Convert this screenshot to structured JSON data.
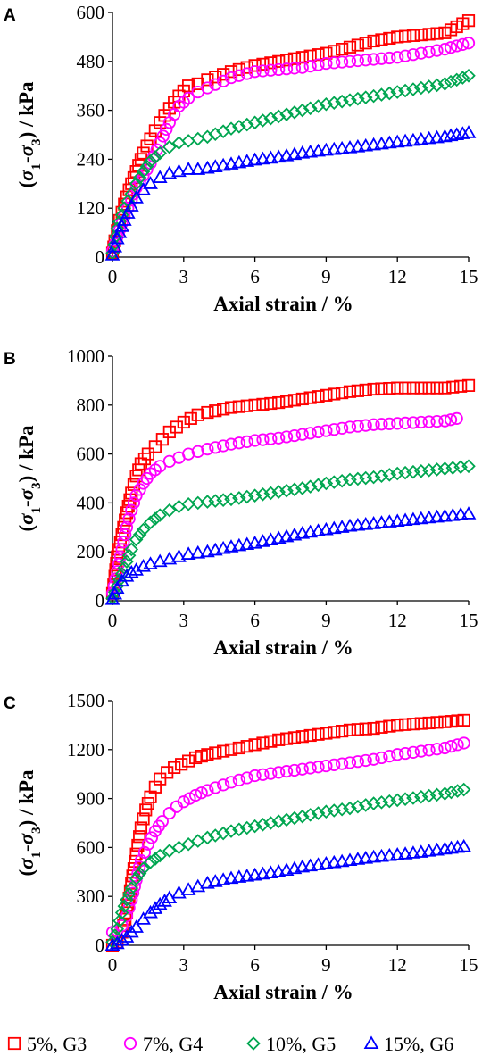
{
  "chart_data": [
    {
      "type": "scatter",
      "panel_label": "A",
      "xlabel": "Axial strain / %",
      "ylabel": "(σ1-σ3) / kPa",
      "xlim": [
        0,
        15
      ],
      "ylim": [
        0,
        600
      ],
      "xticks": [
        0,
        3,
        6,
        9,
        12,
        15
      ],
      "yticks": [
        0,
        120,
        240,
        360,
        480,
        600
      ],
      "series": [
        {
          "name": "5%, G3",
          "x": [
            0,
            0.1,
            0.2,
            0.3,
            0.5,
            0.7,
            1.0,
            1.3,
            1.6,
            2.0,
            2.4,
            2.8,
            3.2,
            3.6,
            4.0,
            5.0,
            6.0,
            7.0,
            8.0,
            9.0,
            10.0,
            11.0,
            12.0,
            13.0,
            14.0,
            14.5,
            15.0
          ],
          "y": [
            10,
            40,
            65,
            90,
            130,
            165,
            210,
            255,
            290,
            330,
            365,
            395,
            420,
            425,
            435,
            455,
            470,
            480,
            490,
            500,
            515,
            530,
            540,
            545,
            550,
            565,
            580
          ]
        },
        {
          "name": "7%, G4",
          "x": [
            0,
            0.2,
            0.5,
            0.8,
            1.0,
            1.3,
            1.6,
            2.0,
            2.4,
            2.8,
            3.2,
            3.6,
            4.0,
            5.0,
            6.0,
            7.0,
            8.0,
            9.0,
            10.0,
            11.0,
            12.0,
            13.0,
            14.0,
            14.5,
            15.0
          ],
          "y": [
            15,
            50,
            100,
            140,
            170,
            200,
            230,
            280,
            330,
            370,
            390,
            405,
            415,
            440,
            455,
            460,
            465,
            475,
            480,
            485,
            490,
            500,
            510,
            518,
            525
          ]
        },
        {
          "name": "10%, G5",
          "x": [
            0,
            0.2,
            0.5,
            0.8,
            1.0,
            1.3,
            1.6,
            2.0,
            2.4,
            2.8,
            3.2,
            3.6,
            4.0,
            5.0,
            6.0,
            7.0,
            8.0,
            9.0,
            10.0,
            11.0,
            12.0,
            13.0,
            14.0,
            14.5,
            15.0
          ],
          "y": [
            10,
            70,
            120,
            155,
            180,
            210,
            235,
            255,
            270,
            280,
            285,
            290,
            295,
            315,
            330,
            345,
            360,
            375,
            385,
            395,
            405,
            415,
            425,
            435,
            445
          ]
        },
        {
          "name": "15%, G6",
          "x": [
            0,
            0.2,
            0.5,
            0.8,
            1.0,
            1.3,
            1.6,
            2.0,
            2.4,
            2.8,
            3.2,
            3.6,
            4.0,
            5.0,
            6.0,
            7.0,
            8.0,
            9.0,
            10.0,
            11.0,
            12.0,
            13.0,
            14.0,
            14.5,
            15.0
          ],
          "y": [
            5,
            45,
            90,
            125,
            145,
            165,
            180,
            195,
            205,
            210,
            215,
            215,
            218,
            228,
            238,
            245,
            255,
            262,
            268,
            275,
            282,
            288,
            295,
            300,
            305
          ]
        }
      ]
    },
    {
      "type": "scatter",
      "panel_label": "B",
      "xlabel": "Axial strain / %",
      "ylabel": "(σ1-σ3) / kPa",
      "xlim": [
        0,
        15
      ],
      "ylim": [
        0,
        1000
      ],
      "xticks": [
        0,
        3,
        6,
        9,
        12,
        15
      ],
      "yticks": [
        0,
        200,
        400,
        600,
        800,
        1000
      ],
      "series": [
        {
          "name": "5%, G3",
          "x": [
            0,
            0.1,
            0.2,
            0.4,
            0.6,
            0.8,
            1.0,
            1.2,
            1.5,
            1.8,
            2.1,
            2.4,
            2.7,
            3.0,
            3.3,
            3.6,
            4.0,
            5.0,
            6.0,
            7.0,
            8.0,
            9.0,
            10.0,
            11.0,
            12.0,
            13.0,
            14.0,
            15.0
          ],
          "y": [
            30,
            100,
            180,
            270,
            360,
            440,
            510,
            560,
            600,
            630,
            660,
            690,
            710,
            730,
            745,
            760,
            770,
            790,
            800,
            810,
            825,
            840,
            855,
            865,
            870,
            870,
            870,
            880
          ]
        },
        {
          "name": "7%, G4",
          "x": [
            0,
            0.2,
            0.4,
            0.6,
            0.8,
            1.0,
            1.3,
            1.6,
            2.0,
            2.4,
            2.8,
            3.2,
            3.6,
            4.0,
            5.0,
            6.0,
            7.0,
            8.0,
            9.0,
            10.0,
            11.0,
            12.0,
            13.0,
            14.0,
            14.5
          ],
          "y": [
            30,
            120,
            210,
            300,
            370,
            430,
            480,
            520,
            550,
            570,
            585,
            600,
            610,
            620,
            640,
            655,
            665,
            680,
            695,
            710,
            720,
            725,
            730,
            735,
            745
          ]
        },
        {
          "name": "10%, G5",
          "x": [
            0,
            0.2,
            0.4,
            0.6,
            0.8,
            1.0,
            1.3,
            1.6,
            2.0,
            2.4,
            2.8,
            3.2,
            3.6,
            4.0,
            5.0,
            6.0,
            7.0,
            8.0,
            9.0,
            10.0,
            11.0,
            12.0,
            13.0,
            14.0,
            15.0
          ],
          "y": [
            10,
            60,
            110,
            160,
            210,
            250,
            290,
            320,
            350,
            370,
            385,
            395,
            400,
            405,
            415,
            430,
            445,
            460,
            480,
            495,
            505,
            520,
            530,
            540,
            550
          ]
        },
        {
          "name": "15%, G6",
          "x": [
            0,
            0.2,
            0.4,
            0.6,
            0.8,
            1.0,
            1.3,
            1.6,
            2.0,
            2.4,
            2.8,
            3.2,
            3.6,
            4.0,
            5.0,
            6.0,
            7.0,
            8.0,
            9.0,
            10.0,
            11.0,
            12.0,
            13.0,
            14.0,
            15.0
          ],
          "y": [
            5,
            50,
            80,
            100,
            115,
            125,
            140,
            150,
            160,
            170,
            180,
            190,
            195,
            200,
            220,
            235,
            255,
            275,
            290,
            305,
            315,
            325,
            335,
            345,
            355
          ]
        }
      ]
    },
    {
      "type": "scatter",
      "panel_label": "C",
      "xlabel": "Axial strain / %",
      "ylabel": "(σ1-σ3) / kPa",
      "xlim": [
        0,
        15
      ],
      "ylim": [
        0,
        1500
      ],
      "xticks": [
        0,
        3,
        6,
        9,
        12,
        15
      ],
      "yticks": [
        0,
        300,
        600,
        900,
        1200,
        1500
      ],
      "series": [
        {
          "name": "5%, G3",
          "x": [
            0,
            0.2,
            0.4,
            0.6,
            0.8,
            1.0,
            1.2,
            1.4,
            1.6,
            1.8,
            2.0,
            2.3,
            2.6,
            2.9,
            3.2,
            3.5,
            4.0,
            5.0,
            6.0,
            7.0,
            8.0,
            9.0,
            10.0,
            11.0,
            12.0,
            13.0,
            14.0,
            14.8
          ],
          "y": [
            0,
            20,
            80,
            200,
            380,
            560,
            720,
            830,
            910,
            970,
            1020,
            1060,
            1090,
            1110,
            1130,
            1150,
            1170,
            1200,
            1230,
            1260,
            1280,
            1300,
            1320,
            1330,
            1350,
            1360,
            1370,
            1380
          ]
        },
        {
          "name": "7%, G4",
          "x": [
            0,
            0.2,
            0.4,
            0.6,
            0.8,
            1.0,
            1.2,
            1.5,
            1.8,
            2.1,
            2.4,
            2.7,
            3.0,
            3.5,
            4.0,
            5.0,
            6.0,
            7.0,
            8.0,
            9.0,
            10.0,
            11.0,
            12.0,
            13.0,
            14.0,
            14.8
          ],
          "y": [
            80,
            90,
            120,
            180,
            280,
            400,
            520,
            620,
            700,
            760,
            810,
            850,
            880,
            920,
            950,
            1000,
            1040,
            1060,
            1080,
            1100,
            1120,
            1140,
            1170,
            1190,
            1210,
            1240
          ]
        },
        {
          "name": "10%, G5",
          "x": [
            0,
            0.2,
            0.4,
            0.6,
            0.8,
            1.0,
            1.3,
            1.6,
            2.0,
            2.4,
            2.8,
            3.2,
            3.6,
            4.0,
            5.0,
            6.0,
            7.0,
            8.0,
            9.0,
            10.0,
            11.0,
            12.0,
            13.0,
            14.0,
            14.8
          ],
          "y": [
            20,
            100,
            200,
            280,
            350,
            410,
            470,
            510,
            550,
            580,
            600,
            620,
            640,
            660,
            700,
            730,
            760,
            790,
            820,
            840,
            870,
            890,
            910,
            930,
            955
          ]
        },
        {
          "name": "15%, G6",
          "x": [
            0,
            0.2,
            0.4,
            0.6,
            0.8,
            1.0,
            1.3,
            1.6,
            2.0,
            2.4,
            2.8,
            3.2,
            3.6,
            4.0,
            5.0,
            6.0,
            7.0,
            8.0,
            9.0,
            10.0,
            11.0,
            12.0,
            13.0,
            14.0,
            14.8
          ],
          "y": [
            0,
            10,
            30,
            50,
            80,
            110,
            160,
            200,
            250,
            290,
            320,
            340,
            360,
            380,
            410,
            430,
            450,
            480,
            500,
            520,
            540,
            555,
            570,
            590,
            605
          ]
        }
      ]
    }
  ],
  "legend": {
    "placement": "bottom",
    "items": [
      {
        "label": "5%, G3",
        "color": "#ff0000",
        "marker": "square"
      },
      {
        "label": "7%, G4",
        "color": "#ff00ff",
        "marker": "circle"
      },
      {
        "label": "10%, G5",
        "color": "#00a650",
        "marker": "diamond"
      },
      {
        "label": "15%, G6",
        "color": "#0000ff",
        "marker": "triangle"
      }
    ]
  }
}
